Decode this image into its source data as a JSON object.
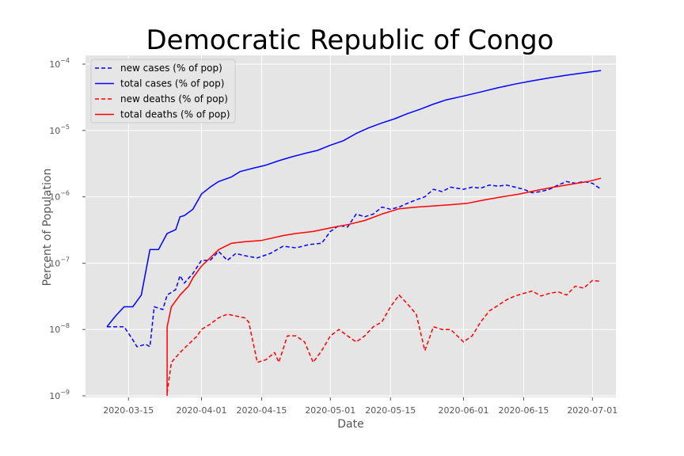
{
  "chart_data": {
    "type": "line",
    "title": "Democratic Republic of Congo",
    "xlabel": "Date",
    "ylabel": "Percent of Population",
    "yscale": "log",
    "ylim": [
      1e-09,
      0.00014
    ],
    "xlim": [
      "2020-03-05",
      "2020-07-05"
    ],
    "x_ticks": [
      "2020-03-15",
      "2020-04-01",
      "2020-04-15",
      "2020-05-01",
      "2020-05-15",
      "2020-06-01",
      "2020-06-15",
      "2020-07-01"
    ],
    "y_ticks": [
      {
        "value": 1e-09,
        "base": "10",
        "exp": "−9"
      },
      {
        "value": 1e-08,
        "base": "10",
        "exp": "−8"
      },
      {
        "value": 1e-07,
        "base": "10",
        "exp": "−7"
      },
      {
        "value": 1e-06,
        "base": "10",
        "exp": "−6"
      },
      {
        "value": 1e-05,
        "base": "10",
        "exp": "−5"
      },
      {
        "value": 0.0001,
        "base": "10",
        "exp": "−4"
      }
    ],
    "grid": true,
    "legend_position": "upper-left",
    "background": "#e5e5e5",
    "series": [
      {
        "name": "new cases (% of pop)",
        "color": "#0000ff",
        "dash": true,
        "points": [
          [
            "2020-03-10",
            1.1e-08
          ],
          [
            "2020-03-12",
            1.1e-08
          ],
          [
            "2020-03-14",
            1.1e-08
          ],
          [
            "2020-03-16",
            7e-09
          ],
          [
            "2020-03-17",
            5.5e-09
          ],
          [
            "2020-03-19",
            6e-09
          ],
          [
            "2020-03-20",
            5.5e-09
          ],
          [
            "2020-03-21",
            2.2e-08
          ],
          [
            "2020-03-23",
            2e-08
          ],
          [
            "2020-03-24",
            3.3e-08
          ],
          [
            "2020-03-26",
            4e-08
          ],
          [
            "2020-03-27",
            6.5e-08
          ],
          [
            "2020-03-28",
            5e-08
          ],
          [
            "2020-03-30",
            7e-08
          ],
          [
            "2020-04-01",
            1.1e-07
          ],
          [
            "2020-04-03",
            1.1e-07
          ],
          [
            "2020-04-05",
            1.5e-07
          ],
          [
            "2020-04-07",
            1.1e-07
          ],
          [
            "2020-04-09",
            1.4e-07
          ],
          [
            "2020-04-11",
            1.3e-07
          ],
          [
            "2020-04-14",
            1.2e-07
          ],
          [
            "2020-04-17",
            1.4e-07
          ],
          [
            "2020-04-20",
            1.8e-07
          ],
          [
            "2020-04-23",
            1.7e-07
          ],
          [
            "2020-04-26",
            1.9e-07
          ],
          [
            "2020-04-29",
            2e-07
          ],
          [
            "2020-05-01",
            3e-07
          ],
          [
            "2020-05-03",
            3.7e-07
          ],
          [
            "2020-05-05",
            3.5e-07
          ],
          [
            "2020-05-07",
            5.5e-07
          ],
          [
            "2020-05-09",
            5e-07
          ],
          [
            "2020-05-11",
            5.5e-07
          ],
          [
            "2020-05-13",
            7e-07
          ],
          [
            "2020-05-15",
            6.5e-07
          ],
          [
            "2020-05-17",
            7e-07
          ],
          [
            "2020-05-19",
            8e-07
          ],
          [
            "2020-05-21",
            9e-07
          ],
          [
            "2020-05-23",
            1e-06
          ],
          [
            "2020-05-25",
            1.3e-06
          ],
          [
            "2020-05-27",
            1.2e-06
          ],
          [
            "2020-05-29",
            1.4e-06
          ],
          [
            "2020-06-01",
            1.3e-06
          ],
          [
            "2020-06-03",
            1.4e-06
          ],
          [
            "2020-06-05",
            1.35e-06
          ],
          [
            "2020-06-07",
            1.5e-06
          ],
          [
            "2020-06-09",
            1.45e-06
          ],
          [
            "2020-06-11",
            1.5e-06
          ],
          [
            "2020-06-13",
            1.4e-06
          ],
          [
            "2020-06-15",
            1.3e-06
          ],
          [
            "2020-06-17",
            1.15e-06
          ],
          [
            "2020-06-19",
            1.2e-06
          ],
          [
            "2020-06-21",
            1.3e-06
          ],
          [
            "2020-06-23",
            1.5e-06
          ],
          [
            "2020-06-25",
            1.7e-06
          ],
          [
            "2020-06-27",
            1.6e-06
          ],
          [
            "2020-06-29",
            1.7e-06
          ],
          [
            "2020-07-01",
            1.6e-06
          ],
          [
            "2020-07-03",
            1.3e-06
          ]
        ]
      },
      {
        "name": "total cases (% of pop)",
        "color": "#0000ff",
        "dash": false,
        "points": [
          [
            "2020-03-10",
            1.1e-08
          ],
          [
            "2020-03-12",
            1.6e-08
          ],
          [
            "2020-03-14",
            2.2e-08
          ],
          [
            "2020-03-16",
            2.2e-08
          ],
          [
            "2020-03-18",
            3.3e-08
          ],
          [
            "2020-03-20",
            1.6e-07
          ],
          [
            "2020-03-22",
            1.6e-07
          ],
          [
            "2020-03-24",
            2.8e-07
          ],
          [
            "2020-03-26",
            3.2e-07
          ],
          [
            "2020-03-27",
            5e-07
          ],
          [
            "2020-03-28",
            5.2e-07
          ],
          [
            "2020-03-30",
            6.5e-07
          ],
          [
            "2020-04-01",
            1.1e-06
          ],
          [
            "2020-04-03",
            1.4e-06
          ],
          [
            "2020-04-05",
            1.7e-06
          ],
          [
            "2020-04-08",
            2e-06
          ],
          [
            "2020-04-10",
            2.4e-06
          ],
          [
            "2020-04-13",
            2.7e-06
          ],
          [
            "2020-04-16",
            3e-06
          ],
          [
            "2020-04-19",
            3.5e-06
          ],
          [
            "2020-04-22",
            4e-06
          ],
          [
            "2020-04-25",
            4.5e-06
          ],
          [
            "2020-04-28",
            5e-06
          ],
          [
            "2020-05-01",
            6e-06
          ],
          [
            "2020-05-04",
            7e-06
          ],
          [
            "2020-05-07",
            9e-06
          ],
          [
            "2020-05-10",
            1.1e-05
          ],
          [
            "2020-05-13",
            1.3e-05
          ],
          [
            "2020-05-16",
            1.5e-05
          ],
          [
            "2020-05-19",
            1.8e-05
          ],
          [
            "2020-05-22",
            2.1e-05
          ],
          [
            "2020-05-25",
            2.5e-05
          ],
          [
            "2020-05-28",
            2.9e-05
          ],
          [
            "2020-06-01",
            3.3e-05
          ],
          [
            "2020-06-05",
            3.8e-05
          ],
          [
            "2020-06-09",
            4.4e-05
          ],
          [
            "2020-06-13",
            5e-05
          ],
          [
            "2020-06-17",
            5.6e-05
          ],
          [
            "2020-06-21",
            6.2e-05
          ],
          [
            "2020-06-25",
            6.8e-05
          ],
          [
            "2020-06-29",
            7.4e-05
          ],
          [
            "2020-07-03",
            8e-05
          ]
        ]
      },
      {
        "name": "new deaths (% of pop)",
        "color": "#ff0000",
        "dash": true,
        "points": [
          [
            "2020-03-24",
            1.1e-09
          ],
          [
            "2020-03-25",
            3.2e-09
          ],
          [
            "2020-03-27",
            4.5e-09
          ],
          [
            "2020-03-29",
            6e-09
          ],
          [
            "2020-03-31",
            8e-09
          ],
          [
            "2020-04-01",
            1e-08
          ],
          [
            "2020-04-03",
            1.2e-08
          ],
          [
            "2020-04-05",
            1.5e-08
          ],
          [
            "2020-04-07",
            1.7e-08
          ],
          [
            "2020-04-09",
            1.6e-08
          ],
          [
            "2020-04-11",
            1.5e-08
          ],
          [
            "2020-04-12",
            1.3e-08
          ],
          [
            "2020-04-14",
            3.2e-09
          ],
          [
            "2020-04-16",
            3.5e-09
          ],
          [
            "2020-04-18",
            4.5e-09
          ],
          [
            "2020-04-19",
            3.2e-09
          ],
          [
            "2020-04-21",
            8e-09
          ],
          [
            "2020-04-23",
            8e-09
          ],
          [
            "2020-04-25",
            6.5e-09
          ],
          [
            "2020-04-27",
            3.2e-09
          ],
          [
            "2020-04-29",
            4.8e-09
          ],
          [
            "2020-05-01",
            8e-09
          ],
          [
            "2020-05-03",
            1e-08
          ],
          [
            "2020-05-05",
            8e-09
          ],
          [
            "2020-05-07",
            6.5e-09
          ],
          [
            "2020-05-09",
            8e-09
          ],
          [
            "2020-05-11",
            1.1e-08
          ],
          [
            "2020-05-13",
            1.3e-08
          ],
          [
            "2020-05-15",
            2.2e-08
          ],
          [
            "2020-05-17",
            3.3e-08
          ],
          [
            "2020-05-19",
            2.4e-08
          ],
          [
            "2020-05-21",
            1.7e-08
          ],
          [
            "2020-05-23",
            4.8e-09
          ],
          [
            "2020-05-25",
            1.1e-08
          ],
          [
            "2020-05-27",
            1e-08
          ],
          [
            "2020-05-29",
            1e-08
          ],
          [
            "2020-06-01",
            6.5e-09
          ],
          [
            "2020-06-03",
            8e-09
          ],
          [
            "2020-06-05",
            1.3e-08
          ],
          [
            "2020-06-07",
            1.9e-08
          ],
          [
            "2020-06-09",
            2.3e-08
          ],
          [
            "2020-06-11",
            2.8e-08
          ],
          [
            "2020-06-13",
            3.2e-08
          ],
          [
            "2020-06-15",
            3.5e-08
          ],
          [
            "2020-06-17",
            3.8e-08
          ],
          [
            "2020-06-19",
            3.2e-08
          ],
          [
            "2020-06-21",
            3.5e-08
          ],
          [
            "2020-06-23",
            3.7e-08
          ],
          [
            "2020-06-25",
            3.3e-08
          ],
          [
            "2020-06-27",
            4.5e-08
          ],
          [
            "2020-06-29",
            4.2e-08
          ],
          [
            "2020-07-01",
            5.5e-08
          ],
          [
            "2020-07-03",
            5.3e-08
          ]
        ]
      },
      {
        "name": "total deaths (% of pop)",
        "color": "#ff0000",
        "dash": false,
        "points": [
          [
            "2020-03-24",
            1e-09
          ],
          [
            "2020-03-24",
            1.1e-08
          ],
          [
            "2020-03-25",
            2.2e-08
          ],
          [
            "2020-03-27",
            3.3e-08
          ],
          [
            "2020-03-29",
            4.5e-08
          ],
          [
            "2020-03-30",
            6e-08
          ],
          [
            "2020-04-01",
            9e-08
          ],
          [
            "2020-04-03",
            1.2e-07
          ],
          [
            "2020-04-05",
            1.6e-07
          ],
          [
            "2020-04-08",
            2e-07
          ],
          [
            "2020-04-11",
            2.1e-07
          ],
          [
            "2020-04-15",
            2.2e-07
          ],
          [
            "2020-04-20",
            2.6e-07
          ],
          [
            "2020-04-23",
            2.8e-07
          ],
          [
            "2020-04-27",
            3e-07
          ],
          [
            "2020-05-01",
            3.4e-07
          ],
          [
            "2020-05-05",
            3.8e-07
          ],
          [
            "2020-05-09",
            4.4e-07
          ],
          [
            "2020-05-13",
            5.5e-07
          ],
          [
            "2020-05-17",
            6.6e-07
          ],
          [
            "2020-05-21",
            7e-07
          ],
          [
            "2020-05-25",
            7.3e-07
          ],
          [
            "2020-05-29",
            7.6e-07
          ],
          [
            "2020-06-02",
            8e-07
          ],
          [
            "2020-06-06",
            9e-07
          ],
          [
            "2020-06-10",
            1e-06
          ],
          [
            "2020-06-14",
            1.1e-06
          ],
          [
            "2020-06-18",
            1.25e-06
          ],
          [
            "2020-06-22",
            1.4e-06
          ],
          [
            "2020-06-26",
            1.55e-06
          ],
          [
            "2020-06-30",
            1.7e-06
          ],
          [
            "2020-07-03",
            1.9e-06
          ]
        ]
      }
    ]
  }
}
